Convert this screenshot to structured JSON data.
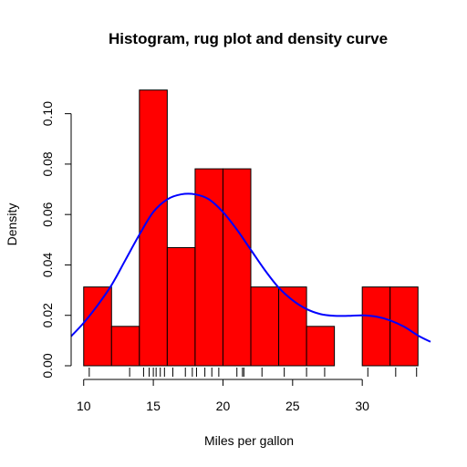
{
  "chart_data": {
    "type": "bar",
    "title": "Histogram, rug plot and density curve",
    "xlabel": "Miles per gallon",
    "ylabel": "Density",
    "xlim": [
      9.1,
      34.9
    ],
    "ylim": [
      0,
      0.11
    ],
    "x_ticks": [
      10,
      15,
      20,
      25,
      30
    ],
    "y_ticks": [
      0.0,
      0.02,
      0.04,
      0.06,
      0.08,
      0.1
    ],
    "y_tick_labels": [
      "0.00",
      "0.02",
      "0.04",
      "0.06",
      "0.08",
      "0.10"
    ],
    "grid": false,
    "bar_color": "#ff0000",
    "bar_border_color": "#000000",
    "curve_color": "#0000ff",
    "bins": [
      {
        "x0": 10,
        "x1": 12,
        "density": 0.03125
      },
      {
        "x0": 12,
        "x1": 14,
        "density": 0.015625
      },
      {
        "x0": 14,
        "x1": 16,
        "density": 0.109375
      },
      {
        "x0": 16,
        "x1": 18,
        "density": 0.046875
      },
      {
        "x0": 18,
        "x1": 20,
        "density": 0.078125
      },
      {
        "x0": 20,
        "x1": 22,
        "density": 0.078125
      },
      {
        "x0": 22,
        "x1": 24,
        "density": 0.03125
      },
      {
        "x0": 24,
        "x1": 26,
        "density": 0.03125
      },
      {
        "x0": 26,
        "x1": 28,
        "density": 0.015625
      },
      {
        "x0": 28,
        "x1": 30,
        "density": 0.0
      },
      {
        "x0": 30,
        "x1": 32,
        "density": 0.03125
      },
      {
        "x0": 32,
        "x1": 34,
        "density": 0.03125
      }
    ],
    "rug": [
      10.4,
      13.3,
      14.3,
      14.7,
      15.0,
      15.2,
      15.5,
      15.8,
      16.4,
      17.3,
      17.8,
      18.1,
      18.7,
      19.2,
      19.7,
      21.0,
      21.4,
      21.5,
      22.8,
      24.4,
      26.0,
      27.3,
      30.4,
      32.4,
      33.9
    ],
    "density_curve": {
      "x": [
        9.1,
        10,
        11,
        12,
        13,
        14,
        15,
        16,
        17,
        18,
        19,
        20,
        21,
        22,
        23,
        24,
        25,
        26,
        27,
        28,
        29,
        30,
        31,
        32,
        33,
        34,
        34.9
      ],
      "y": [
        0.0117,
        0.017,
        0.024,
        0.032,
        0.042,
        0.052,
        0.061,
        0.066,
        0.068,
        0.068,
        0.066,
        0.061,
        0.054,
        0.046,
        0.038,
        0.031,
        0.026,
        0.0225,
        0.0205,
        0.0198,
        0.0198,
        0.02,
        0.0195,
        0.018,
        0.0155,
        0.012,
        0.0095
      ]
    }
  }
}
